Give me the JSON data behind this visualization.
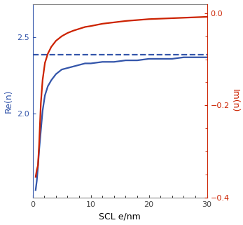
{
  "title": "",
  "xlabel": "SCL e/nm",
  "ylabel_left": "Re(n)",
  "ylabel_right": "Im(n)",
  "xlim": [
    0,
    30
  ],
  "ylim_left": [
    1.45,
    2.72
  ],
  "ylim_right": [
    -0.4,
    0.02
  ],
  "yticks_left": [
    2.0,
    2.5
  ],
  "yticks_right": [
    0.0,
    -0.2,
    -0.4
  ],
  "xticks": [
    0,
    10,
    20,
    30
  ],
  "dashed_y_left": 2.385,
  "blue_color": "#3355aa",
  "red_color": "#cc2200",
  "linewidth": 1.6,
  "re_x": [
    0.5,
    0.7,
    0.9,
    1.1,
    1.4,
    1.7,
    2.1,
    2.6,
    3.2,
    4.0,
    5.0,
    6.0,
    7.0,
    8.0,
    9.0,
    10.0,
    12.0,
    14.0,
    16.0,
    18.0,
    20.0,
    22.0,
    24.0,
    26.0,
    28.0,
    30.0
  ],
  "re_y": [
    1.5,
    1.56,
    1.65,
    1.76,
    1.89,
    2.02,
    2.12,
    2.18,
    2.22,
    2.26,
    2.29,
    2.3,
    2.31,
    2.32,
    2.33,
    2.33,
    2.34,
    2.34,
    2.35,
    2.35,
    2.36,
    2.36,
    2.36,
    2.37,
    2.37,
    2.37
  ],
  "im_x": [
    0.5,
    0.7,
    0.9,
    1.1,
    1.4,
    1.7,
    2.1,
    2.6,
    3.2,
    4.0,
    5.0,
    6.0,
    7.0,
    8.0,
    9.0,
    10.0,
    12.0,
    14.0,
    16.0,
    18.0,
    20.0,
    22.0,
    24.0,
    26.0,
    28.0,
    30.0
  ],
  "im_y": [
    -0.355,
    -0.34,
    -0.33,
    -0.285,
    -0.195,
    -0.145,
    -0.108,
    -0.088,
    -0.073,
    -0.06,
    -0.05,
    -0.043,
    -0.038,
    -0.034,
    -0.03,
    -0.028,
    -0.023,
    -0.02,
    -0.017,
    -0.015,
    -0.013,
    -0.012,
    -0.011,
    -0.01,
    -0.009,
    -0.008
  ],
  "spine_color": "#888888",
  "tick_color_x": "#444444",
  "fontsize_label": 9,
  "fontsize_tick": 8
}
